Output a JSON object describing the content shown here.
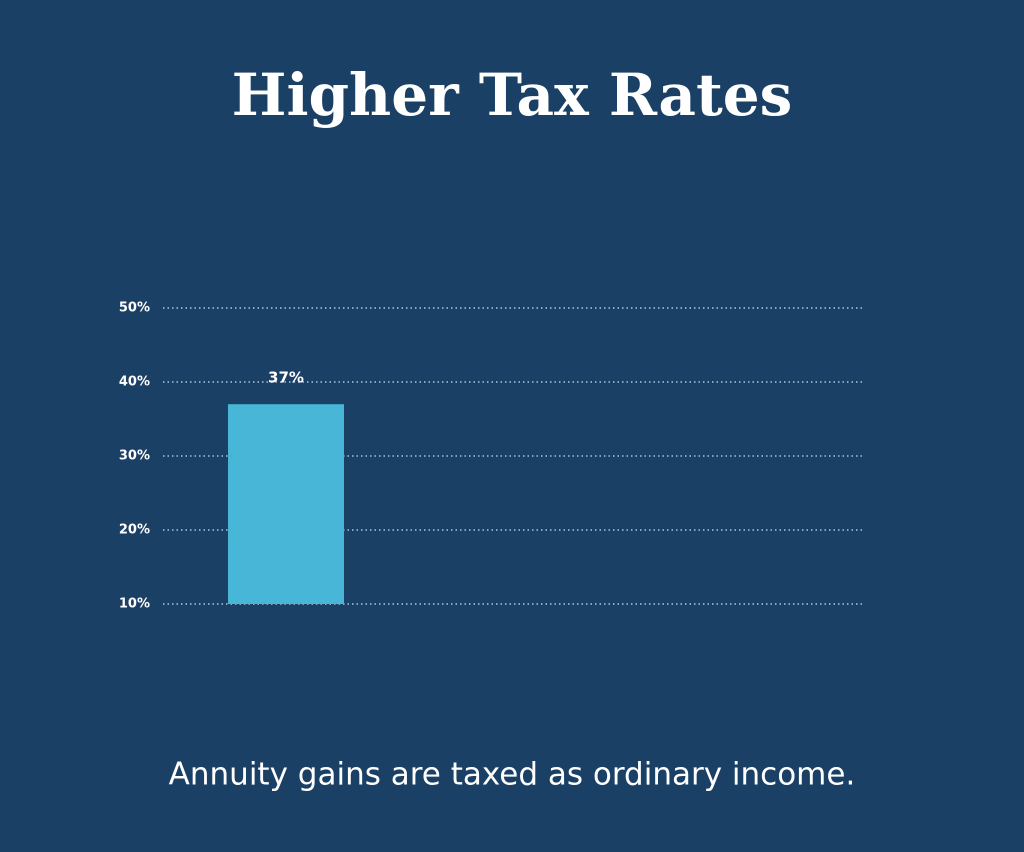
{
  "chart_data": {
    "type": "bar",
    "title": "Higher Tax Rates",
    "subtitle": "Annuity gains are taxed as ordinary income.",
    "categories": [
      null
    ],
    "values": [
      37
    ],
    "value_labels": [
      "37%"
    ],
    "color": "#48b6d6",
    "ylim": [
      10,
      50
    ],
    "yticks": [
      {
        "value": 10,
        "label": "10%"
      },
      {
        "value": 20,
        "label": "20%"
      },
      {
        "value": 30,
        "label": "30%"
      },
      {
        "value": 40,
        "label": "40%"
      },
      {
        "value": 50,
        "label": "50%"
      }
    ],
    "grid": true
  }
}
